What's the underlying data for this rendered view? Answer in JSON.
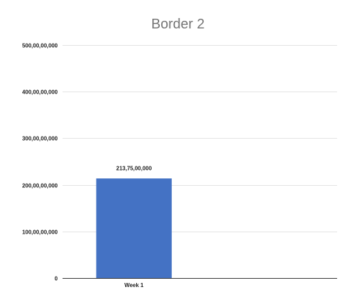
{
  "chart_data": {
    "type": "bar",
    "title": "Border 2",
    "xlabel": "",
    "ylabel": "",
    "categories": [
      "Week 1",
      ""
    ],
    "values": [
      2137500000,
      null
    ],
    "data_labels": [
      "213,75,00,000",
      ""
    ],
    "ylim": [
      0,
      5000000000
    ],
    "yticks": [
      0,
      1000000000,
      2000000000,
      3000000000,
      4000000000,
      5000000000
    ],
    "ytick_labels": [
      "0",
      "100,00,00,000",
      "200,00,00,000",
      "300,00,00,000",
      "400,00,00,000",
      "500,00,00,000"
    ],
    "grid": true,
    "legend": "none",
    "bar_color": "#4472c4"
  }
}
